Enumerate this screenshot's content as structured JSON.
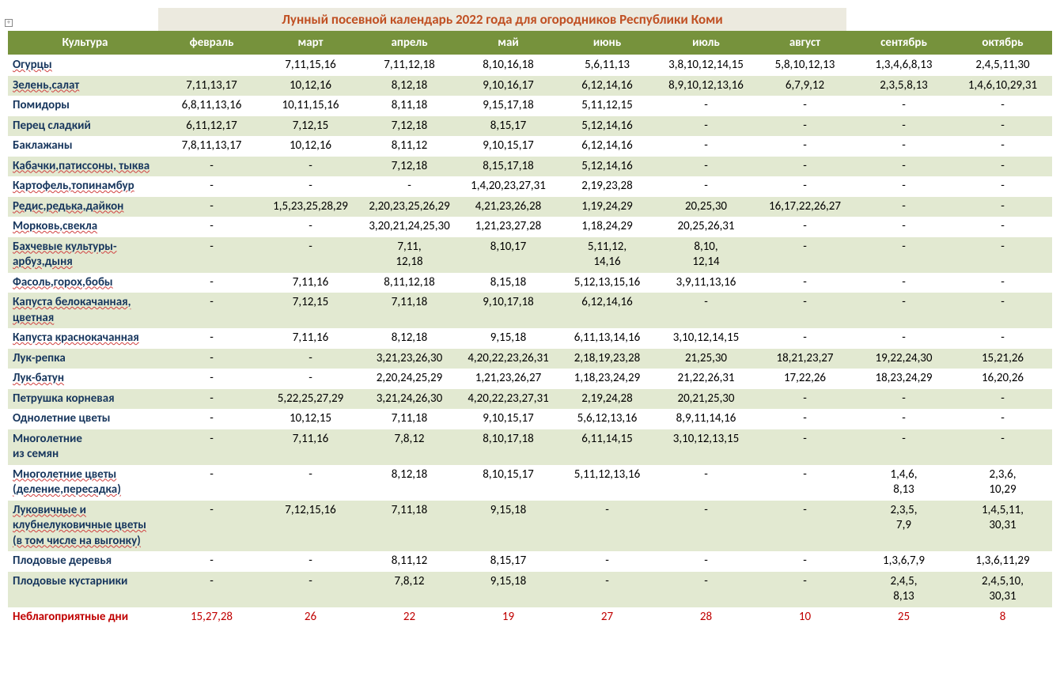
{
  "title": "Лунный посевной календарь 2022 года для огородников Республики Коми",
  "title_color": "#c05023",
  "months": [
    "февраль",
    "март",
    "апрель",
    "май",
    "июнь",
    "июль",
    "август",
    "сентябрь",
    "октябрь"
  ],
  "culture_header": "Культура",
  "header_bg": "#76923c",
  "header_fg": "#ffffff",
  "stripe_odd": "#e2e9d1",
  "stripe_even": "#ffffff",
  "culture_color": "#17365d",
  "bad_color": "#c00000",
  "rows": [
    {
      "name": "Огурцы",
      "und": 1,
      "bad": 0,
      "v": [
        "",
        "7,11,15,16",
        "7,11,12,18",
        "8,10,16,18",
        "5,6,11,13",
        "3,8,10,12,14,15",
        "5,8,10,12,13",
        "1,3,4,6,8,13",
        "2,4,5,11,30"
      ]
    },
    {
      "name": "Зелень,салат",
      "und": 1,
      "bad": 0,
      "v": [
        "7,11,13,17",
        "10,12,16",
        "8,12,18",
        "9,10,16,17",
        "6,12,14,16",
        "8,9,10,12,13,16",
        "6,7,9,12",
        "2,3,5,8,13",
        "1,4,6,10,29,31"
      ]
    },
    {
      "name": "Помидоры",
      "und": 0,
      "bad": 0,
      "v": [
        "6,8,11,13,16",
        "10,11,15,16",
        "8,11,18",
        "9,15,17,18",
        "5,11,12,15",
        "-",
        "-",
        "-",
        "-"
      ]
    },
    {
      "name": "Перец сладкий",
      "und": 0,
      "bad": 0,
      "v": [
        "6,11,12,17",
        "7,12,15",
        "7,12,18",
        "8,15,17",
        "5,12,14,16",
        "-",
        "-",
        "-",
        "-"
      ]
    },
    {
      "name": "Баклажаны",
      "und": 0,
      "bad": 0,
      "v": [
        "7,8,11,13,17",
        "10,12,16",
        "8,11,12",
        "9,10,15,17",
        "6,12,14,16",
        "-",
        "-",
        "-",
        "-"
      ]
    },
    {
      "name": "Кабачки,патиссоны, тыква",
      "und": 1,
      "bad": 0,
      "v": [
        "-",
        "-",
        "7,12,18",
        "8,15,17,18",
        "5,12,14,16",
        "-",
        "-",
        "-",
        "-"
      ]
    },
    {
      "name": "Картофель,топинамбур",
      "und": 1,
      "bad": 0,
      "v": [
        "-",
        "-",
        "-",
        "1,4,20,23,27,31",
        "2,19,23,28",
        "-",
        "-",
        "-",
        "-"
      ]
    },
    {
      "name": "Редис,редька,дайкон",
      "und": 1,
      "bad": 0,
      "v": [
        "-",
        "1,5,23,25,28,29",
        "2,20,23,25,26,29",
        "4,21,23,26,28",
        "1,19,24,29",
        "20,25,30",
        "16,17,22,26,27",
        "-",
        "-"
      ]
    },
    {
      "name": "Морковь,свекла",
      "und": 1,
      "bad": 0,
      "v": [
        "-",
        "-",
        "3,20,21,24,25,30",
        "1,21,23,27,28",
        "1,18,24,29",
        "20,25,26,31",
        "-",
        "-",
        "-"
      ]
    },
    {
      "name": "Бахчевые культуры-арбуз,дыня",
      "und": 1,
      "bad": 0,
      "v": [
        "-",
        "-",
        "7,11,\n12,18",
        "8,10,17",
        "5,11,12,\n14,16",
        "8,10,\n12,14",
        "-",
        "-",
        "-"
      ]
    },
    {
      "name": "Фасоль,горох,бобы",
      "und": 1,
      "bad": 0,
      "v": [
        "-",
        "7,11,16",
        "8,11,12,18",
        "8,15,18",
        "5,12,13,15,16",
        "3,9,11,13,16",
        "-",
        "-",
        "-"
      ]
    },
    {
      "name": "Капуста белокачанная, цветная",
      "und": 1,
      "bad": 0,
      "v": [
        "-",
        "7,12,15",
        "7,11,18",
        "9,10,17,18",
        "6,12,14,16",
        "-",
        "-",
        "-",
        "-"
      ]
    },
    {
      "name": "Капуста краснокачанная",
      "und": 1,
      "bad": 0,
      "v": [
        "-",
        "7,11,16",
        "8,12,18",
        "9,15,18",
        "6,11,13,14,16",
        "3,10,12,14,15",
        "-",
        "-",
        "-"
      ]
    },
    {
      "name": "Лук-репка",
      "und": 0,
      "bad": 0,
      "v": [
        "-",
        "-",
        "3,21,23,26,30",
        "4,20,22,23,26,31",
        "2,18,19,23,28",
        "21,25,30",
        "18,21,23,27",
        "19,22,24,30",
        "15,21,26"
      ]
    },
    {
      "name": "Лук-батун",
      "und": 1,
      "bad": 0,
      "v": [
        "-",
        "-",
        "2,20,24,25,29",
        "1,21,23,26,27",
        "1,18,23,24,29",
        "21,22,26,31",
        "17,22,26",
        "18,23,24,29",
        "16,20,26"
      ]
    },
    {
      "name": "Петрушка корневая",
      "und": 0,
      "bad": 0,
      "v": [
        "-",
        "5,22,25,27,29",
        "3,21,24,26,30",
        "4,20,22,23,27,31",
        "2,19,24,28",
        "20,21,25,30",
        "-",
        "-",
        "-"
      ]
    },
    {
      "name": "Однолетние цветы",
      "und": 0,
      "bad": 0,
      "v": [
        "-",
        "10,12,15",
        "7,11,18",
        "9,10,15,17",
        "5,6,12,13,16",
        "8,9,11,14,16",
        "-",
        "-",
        "-"
      ]
    },
    {
      "name": "Многолетние\n из семян",
      "und": 0,
      "bad": 0,
      "v": [
        "-",
        "7,11,16",
        "7,8,12",
        "8,10,17,18",
        "6,11,14,15",
        "3,10,12,13,15",
        "-",
        "-",
        "-"
      ]
    },
    {
      "name": "Многолетние цветы (деление,пересадка)",
      "und": 1,
      "bad": 0,
      "v": [
        "-",
        "-",
        "8,12,18",
        "8,10,15,17",
        "5,11,12,13,16",
        "-",
        "-",
        "1,4,6,\n8,13",
        "2,3,6,\n10,29"
      ]
    },
    {
      "name": "Луковичные и клубнелуковичные цветы (в том числе на выгонку)",
      "und": 1,
      "bad": 0,
      "v": [
        "-",
        "7,12,15,16",
        "7,11,18",
        "9,15,18",
        "-",
        "-",
        "-",
        "2,3,5,\n7,9",
        "1,4,5,11,\n30,31"
      ]
    },
    {
      "name": "Плодовые деревья",
      "und": 0,
      "bad": 0,
      "v": [
        "-",
        "-",
        "8,11,12",
        "8,15,17",
        "-",
        "-",
        "-",
        "1,3,6,7,9",
        "1,3,6,11,29"
      ]
    },
    {
      "name": "Плодовые кустарники",
      "und": 0,
      "bad": 0,
      "v": [
        "-",
        "-",
        "7,8,12",
        "9,15,18",
        "-",
        "-",
        "-",
        "2,4,5,\n8,13",
        "2,4,5,10,\n30,31"
      ]
    },
    {
      "name": "Неблагоприятные дни",
      "und": 0,
      "bad": 1,
      "v": [
        "15,27,28",
        "26",
        "22",
        "19",
        "27",
        "28",
        "10",
        "25",
        "8"
      ]
    }
  ]
}
